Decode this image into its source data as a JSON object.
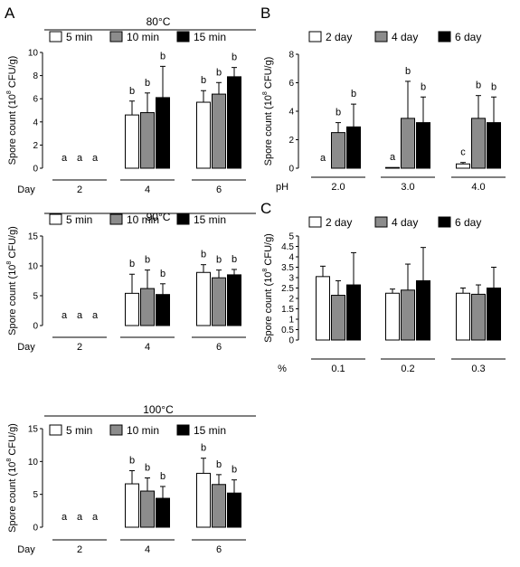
{
  "figure": {
    "panel_labels": [
      "A",
      "B",
      "C"
    ]
  },
  "chart_data": [
    {
      "id": "A1",
      "type": "bar",
      "title": "80°C",
      "ylabel": "Spore count (10^8 CFU/g)",
      "xlabel": "Day",
      "categories": [
        "2",
        "4",
        "6"
      ],
      "ylim": [
        0,
        10
      ],
      "yticks": [
        0,
        2,
        4,
        6,
        8,
        10
      ],
      "series": [
        {
          "name": "5 min",
          "values": [
            0,
            4.6,
            5.7
          ],
          "errors": [
            0,
            1.2,
            1.0
          ],
          "letters": [
            "a",
            "b",
            "b"
          ]
        },
        {
          "name": "10 min",
          "values": [
            0,
            4.8,
            6.4
          ],
          "errors": [
            0,
            1.7,
            1.0
          ],
          "letters": [
            "a",
            "b",
            "b"
          ]
        },
        {
          "name": "15 min",
          "values": [
            0,
            6.1,
            7.9
          ],
          "errors": [
            0,
            2.7,
            0.8
          ],
          "letters": [
            "a",
            "b",
            "b"
          ]
        }
      ]
    },
    {
      "id": "A2",
      "type": "bar",
      "title": "90°C",
      "ylabel": "Spore count (10^8 CFU/g)",
      "xlabel": "Day",
      "categories": [
        "2",
        "4",
        "6"
      ],
      "ylim": [
        0,
        15
      ],
      "yticks": [
        0,
        5,
        10,
        15
      ],
      "series": [
        {
          "name": "5 min",
          "values": [
            0,
            5.4,
            8.9
          ],
          "errors": [
            0,
            3.2,
            1.3
          ],
          "letters": [
            "a",
            "b",
            "b"
          ]
        },
        {
          "name": "10 min",
          "values": [
            0,
            6.2,
            8.0
          ],
          "errors": [
            0,
            3.1,
            1.3
          ],
          "letters": [
            "a",
            "b",
            "b"
          ]
        },
        {
          "name": "15 min",
          "values": [
            0,
            5.2,
            8.5
          ],
          "errors": [
            0,
            1.8,
            0.9
          ],
          "letters": [
            "a",
            "b",
            "b"
          ]
        }
      ]
    },
    {
      "id": "A3",
      "type": "bar",
      "title": "100°C",
      "ylabel": "Spore count (10^8 CFU/g)",
      "xlabel": "Day",
      "categories": [
        "2",
        "4",
        "6"
      ],
      "ylim": [
        0,
        15
      ],
      "yticks": [
        0,
        5,
        10,
        15
      ],
      "series": [
        {
          "name": "5 min",
          "values": [
            0,
            6.6,
            8.2
          ],
          "errors": [
            0,
            2.0,
            2.3
          ],
          "letters": [
            "a",
            "b",
            "b"
          ]
        },
        {
          "name": "10 min",
          "values": [
            0,
            5.5,
            6.5
          ],
          "errors": [
            0,
            2.0,
            1.5
          ],
          "letters": [
            "a",
            "b",
            "b"
          ]
        },
        {
          "name": "15 min",
          "values": [
            0,
            4.4,
            5.2
          ],
          "errors": [
            0,
            1.8,
            2.0
          ],
          "letters": [
            "a",
            "b",
            "b"
          ]
        }
      ]
    },
    {
      "id": "B",
      "type": "bar",
      "title": "",
      "ylabel": "Spore count (10^8 CFU/g)",
      "xlabel": "pH",
      "categories": [
        "2.0",
        "3.0",
        "4.0"
      ],
      "ylim": [
        0,
        8
      ],
      "yticks": [
        0,
        2,
        4,
        6,
        8
      ],
      "series": [
        {
          "name": "2 day",
          "values": [
            0,
            0.05,
            0.3
          ],
          "errors": [
            0,
            0,
            0.1
          ],
          "letters": [
            "a",
            "a",
            "c"
          ]
        },
        {
          "name": "4 day",
          "values": [
            2.5,
            3.5,
            3.5
          ],
          "errors": [
            0.7,
            2.6,
            1.6
          ],
          "letters": [
            "b",
            "b",
            "b"
          ]
        },
        {
          "name": "6 day",
          "values": [
            2.9,
            3.2,
            3.2
          ],
          "errors": [
            1.6,
            1.8,
            1.8
          ],
          "letters": [
            "b",
            "b",
            "b"
          ]
        }
      ]
    },
    {
      "id": "C",
      "type": "bar",
      "title": "",
      "ylabel": "Spore count (10^8 CFU/g)",
      "xlabel": "%",
      "categories": [
        "0.1",
        "0.2",
        "0.3"
      ],
      "ylim": [
        0,
        5
      ],
      "yticks": [
        0,
        0.5,
        1,
        1.5,
        2,
        2.5,
        3,
        3.5,
        4,
        4.5,
        5
      ],
      "series": [
        {
          "name": "2 day",
          "values": [
            3.05,
            2.25,
            2.25
          ],
          "errors": [
            0.5,
            0.2,
            0.25
          ],
          "letters": []
        },
        {
          "name": "4 day",
          "values": [
            2.15,
            2.4,
            2.2
          ],
          "errors": [
            0.7,
            1.25,
            0.45
          ],
          "letters": []
        },
        {
          "name": "6 day",
          "values": [
            2.65,
            2.85,
            2.5
          ],
          "errors": [
            1.55,
            1.6,
            1.0
          ],
          "letters": []
        }
      ]
    }
  ]
}
